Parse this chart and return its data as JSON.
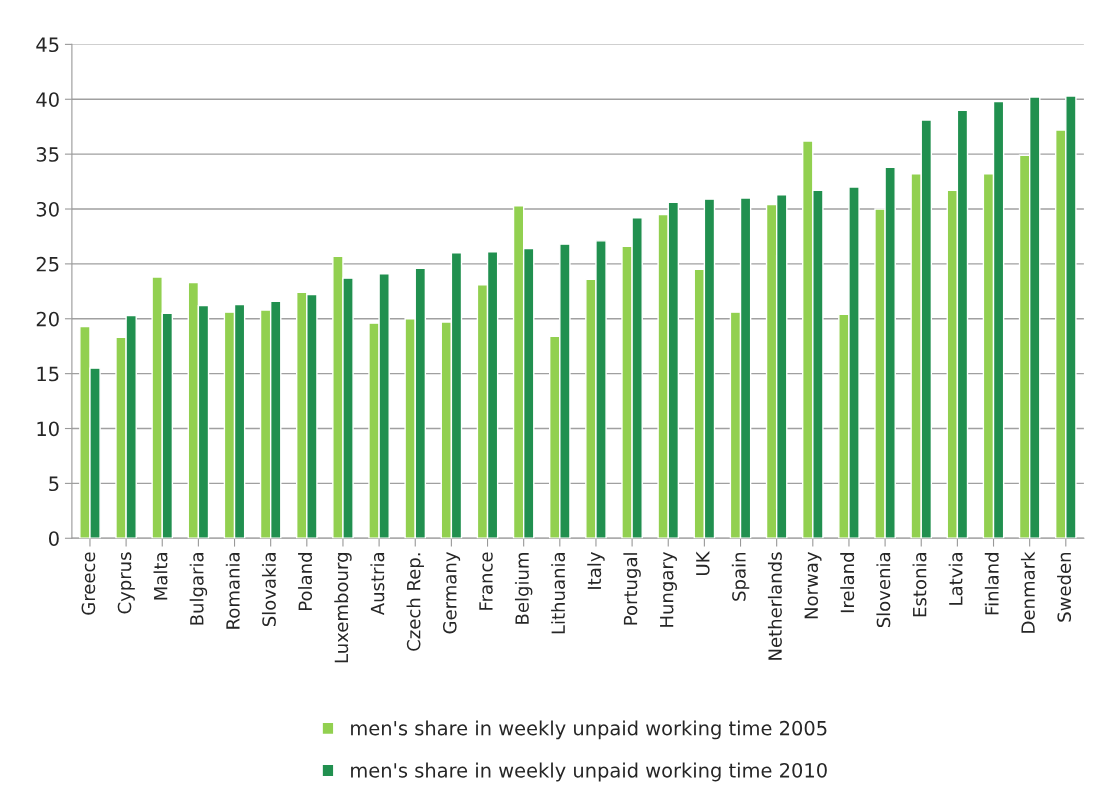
{
  "chart_data": {
    "type": "bar",
    "categories": [
      "Greece",
      "Cyprus",
      "Malta",
      "Bulgaria",
      "Romania",
      "Slovakia",
      "Poland",
      "Luxembourg",
      "Austria",
      "Czech Rep.",
      "Germany",
      "France",
      "Belgium",
      "Lithuania",
      "Italy",
      "Portugal",
      "Hungary",
      "UK",
      "Spain",
      "Netherlands",
      "Norway",
      "Ireland",
      "Slovenia",
      "Estonia",
      "Latvia",
      "Finland",
      "Denmark",
      "Sweden"
    ],
    "series": [
      {
        "name": "men's share in weekly unpaid working time 2005",
        "color": "#92d050",
        "values": [
          19.3,
          18.3,
          23.8,
          23.3,
          20.6,
          20.8,
          22.4,
          25.7,
          19.6,
          20.0,
          19.7,
          23.1,
          30.3,
          18.4,
          23.6,
          26.6,
          29.5,
          24.5,
          20.6,
          30.4,
          36.2,
          20.4,
          30.0,
          33.2,
          31.7,
          33.2,
          34.9,
          37.2
        ]
      },
      {
        "name": "men's share in weekly unpaid working time 2010",
        "color": "#21904f",
        "values": [
          15.5,
          20.3,
          20.5,
          21.2,
          21.3,
          21.6,
          22.2,
          23.7,
          24.1,
          24.6,
          26.0,
          26.1,
          26.4,
          26.8,
          27.1,
          29.2,
          30.6,
          30.9,
          31.0,
          31.3,
          31.7,
          32.0,
          33.8,
          38.1,
          39.0,
          39.8,
          40.2,
          40.3
        ]
      }
    ],
    "ylim": [
      0,
      45
    ],
    "yticks": [
      0,
      5,
      10,
      15,
      20,
      25,
      30,
      35,
      40,
      45
    ],
    "grid": "y",
    "legend": "bottom"
  }
}
